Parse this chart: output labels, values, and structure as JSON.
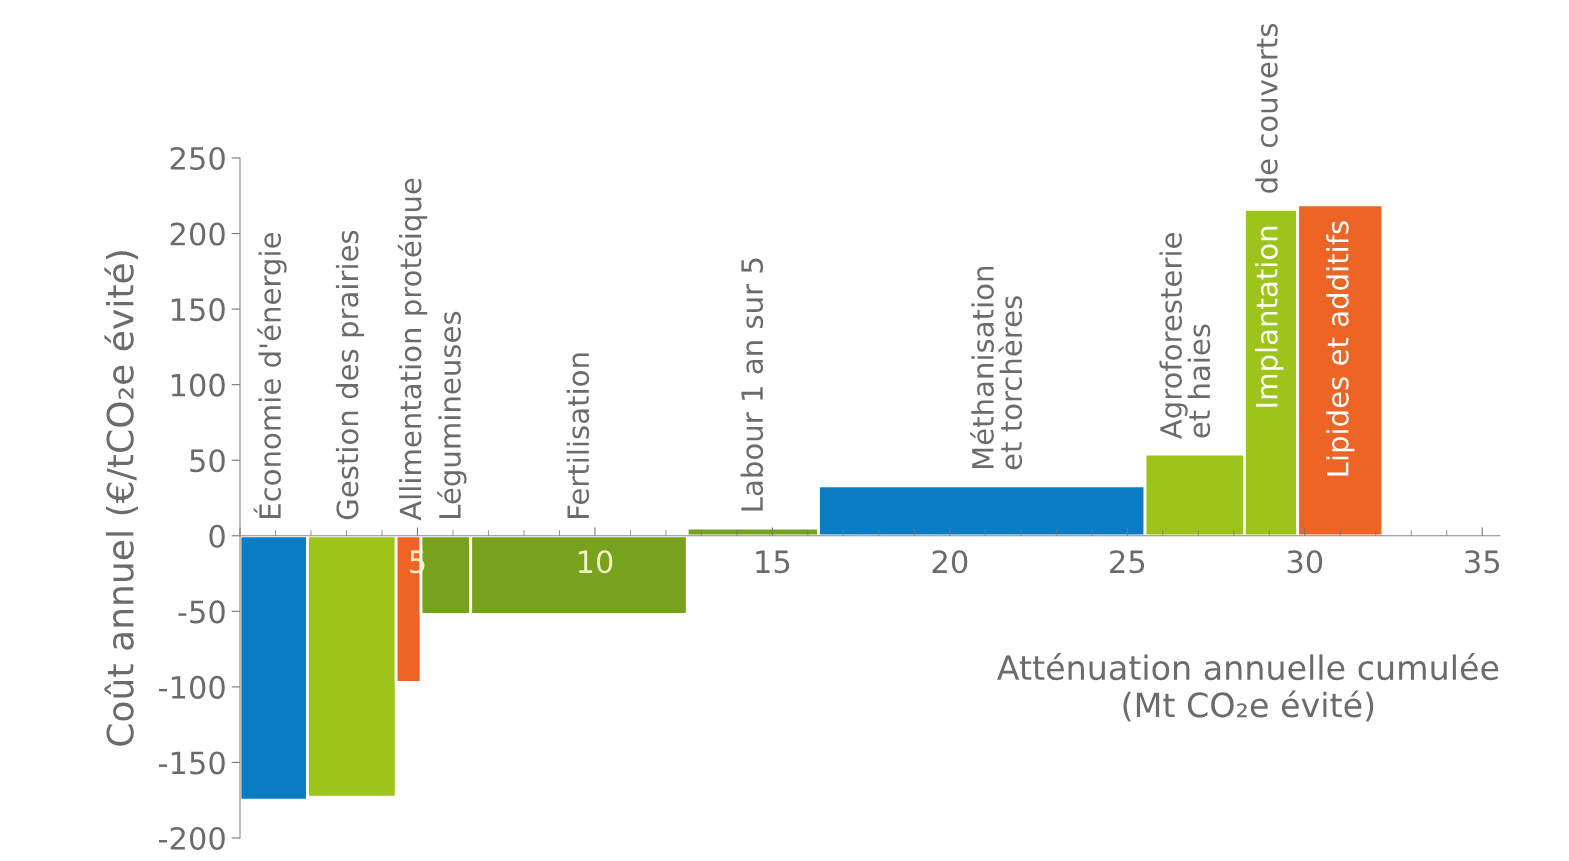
{
  "chart_data": {
    "type": "histogram",
    "ylabel": "Coût annuel (€/tCO₂e évité)",
    "xlabel": "Atténuation annuelle cumulée\n(Mt CO₂e évité)",
    "bins": [
      0,
      1.9,
      4.4,
      5.1,
      6.5,
      12.6,
      16.3,
      25.5,
      28.3,
      29.8,
      32.2
    ],
    "values": [
      -175,
      -173,
      -97,
      -52,
      -52,
      5,
      33,
      54,
      216,
      219
    ],
    "colors": [
      "#0a7cc4",
      "#9dc41a",
      "#ee6424",
      "#76a21e",
      "#76a21e",
      "#76a21e",
      "#0a7cc4",
      "#9dc41a",
      "#9dc41a",
      "#ee6424"
    ],
    "xlim": [
      0,
      35.5
    ],
    "ylim": [
      -200,
      250
    ],
    "xticks": [
      {
        "value": 0,
        "label": null
      },
      5,
      10,
      15,
      20,
      25,
      30,
      35
    ],
    "yticks": [
      -200,
      -150,
      -100,
      -50,
      0,
      50,
      100,
      150,
      200,
      250
    ],
    "grid": false,
    "annotations": [
      {
        "text": "Économie d'énergie",
        "x": 0.85,
        "y": 0
      },
      {
        "text": "Gestion des prairies",
        "x": 3.1,
        "y": 0
      },
      {
        "text": "Allimentation protéique",
        "x": 4.86,
        "y": 0
      },
      {
        "text": "Légumineuses",
        "x": 5.97,
        "y": 0
      },
      {
        "text": "Fertilisation",
        "x": 9.6,
        "y": 0
      },
      {
        "text": "Labour 1 an sur 5",
        "x": 14.5,
        "y": 5
      },
      {
        "text": "Méthanisation\net torchères",
        "x": 21.4,
        "y": 33
      },
      {
        "text": "Agroforesterie\net haies",
        "x": 26.7,
        "y": 54
      },
      {
        "text": "Implantation",
        "x": 29.0,
        "y": 216
      },
      {
        "text": "de couverts",
        "x": 29.0,
        "y": 216
      },
      {
        "text": "Lipides et additifs",
        "x": 31.0,
        "y": 219
      }
    ]
  }
}
